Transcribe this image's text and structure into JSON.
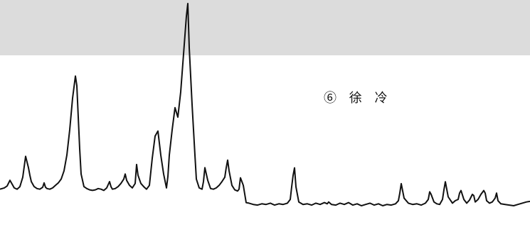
{
  "panel": {
    "label": "⑥ 徐 冷"
  },
  "colors": {
    "trace": "#111111",
    "band": "#dcdcdc",
    "background": "#ffffff"
  },
  "chart_data": {
    "type": "line",
    "title": "",
    "xlabel": "",
    "ylabel": "",
    "grid": false,
    "legend": "none",
    "series": [
      {
        "name": "",
        "x": [
          0,
          6,
          10,
          14,
          17,
          20,
          24,
          28,
          32,
          36,
          40,
          42,
          44,
          48,
          52,
          56,
          60,
          62,
          64,
          66,
          70,
          74,
          78,
          82,
          86,
          90,
          94,
          98,
          102,
          106,
          108,
          110,
          112,
          114,
          118,
          122,
          126,
          130,
          134,
          138,
          142,
          146,
          150,
          154,
          156,
          158,
          162,
          166,
          170,
          174,
          176,
          178,
          182,
          186,
          190,
          192,
          194,
          198,
          202,
          206,
          210,
          214,
          218,
          222,
          226,
          230,
          234,
          236,
          238,
          242,
          246,
          250,
          254,
          258,
          262,
          264,
          266,
          270,
          274,
          276,
          280,
          284,
          286,
          288,
          292,
          296,
          300,
          304,
          308,
          312,
          316,
          318,
          320,
          322,
          326,
          330,
          334,
          336,
          338,
          342,
          346,
          350,
          356,
          362,
          368,
          374,
          380,
          386,
          392,
          398,
          404,
          408,
          410,
          412,
          414,
          416,
          420,
          426,
          432,
          438,
          444,
          450,
          456,
          460,
          462,
          466,
          472,
          478,
          484,
          490,
          496,
          502,
          508,
          514,
          520,
          526,
          532,
          538,
          544,
          550,
          556,
          560,
          562,
          564,
          568,
          574,
          580,
          586,
          592,
          598,
          602,
          604,
          606,
          610,
          614,
          618,
          622,
          624,
          626,
          630,
          636,
          640,
          644,
          646,
          648,
          652,
          656,
          660,
          664,
          666,
          668,
          672,
          676,
          680,
          682,
          684,
          688,
          692,
          696,
          698,
          700,
          704,
          710,
          716,
          722,
          728,
          734,
          740,
          745
        ],
        "y": [
          6,
          8,
          11,
          20,
          14,
          8,
          6,
          10,
          25,
          58,
          40,
          28,
          18,
          10,
          7,
          6,
          9,
          16,
          9,
          7,
          6,
          8,
          12,
          16,
          22,
          35,
          60,
          100,
          150,
          185,
          170,
          120,
          70,
          30,
          10,
          7,
          5,
          4,
          5,
          7,
          6,
          4,
          8,
          18,
          10,
          6,
          7,
          10,
          15,
          22,
          30,
          20,
          12,
          8,
          15,
          45,
          28,
          15,
          10,
          6,
          12,
          55,
          90,
          98,
          60,
          30,
          8,
          26,
          60,
          100,
          135,
          120,
          160,
          220,
          280,
          300,
          230,
          140,
          60,
          22,
          8,
          6,
          18,
          40,
          20,
          7,
          6,
          8,
          12,
          18,
          25,
          40,
          52,
          35,
          12,
          5,
          3,
          6,
          24,
          12,
          5,
          4,
          2,
          1,
          3,
          2,
          4,
          1,
          3,
          2,
          4,
          10,
          30,
          48,
          60,
          30,
          6,
          2,
          3,
          1,
          4,
          2,
          5,
          3,
          6,
          2,
          1,
          4,
          2,
          5,
          1,
          3,
          0,
          2,
          4,
          1,
          3,
          0,
          2,
          1,
          3,
          8,
          20,
          35,
          12,
          4,
          2,
          3,
          1,
          4,
          10,
          22,
          18,
          6,
          3,
          2,
          10,
          25,
          38,
          14,
          4,
          8,
          10,
          20,
          24,
          10,
          4,
          9,
          18,
          16,
          6,
          10,
          18,
          24,
          20,
          8,
          4,
          6,
          12,
          20,
          8,
          3,
          2,
          1,
          0,
          2,
          4,
          6,
          7
        ]
      }
    ],
    "annotations": [
      "⑥ 徐 冷"
    ]
  }
}
